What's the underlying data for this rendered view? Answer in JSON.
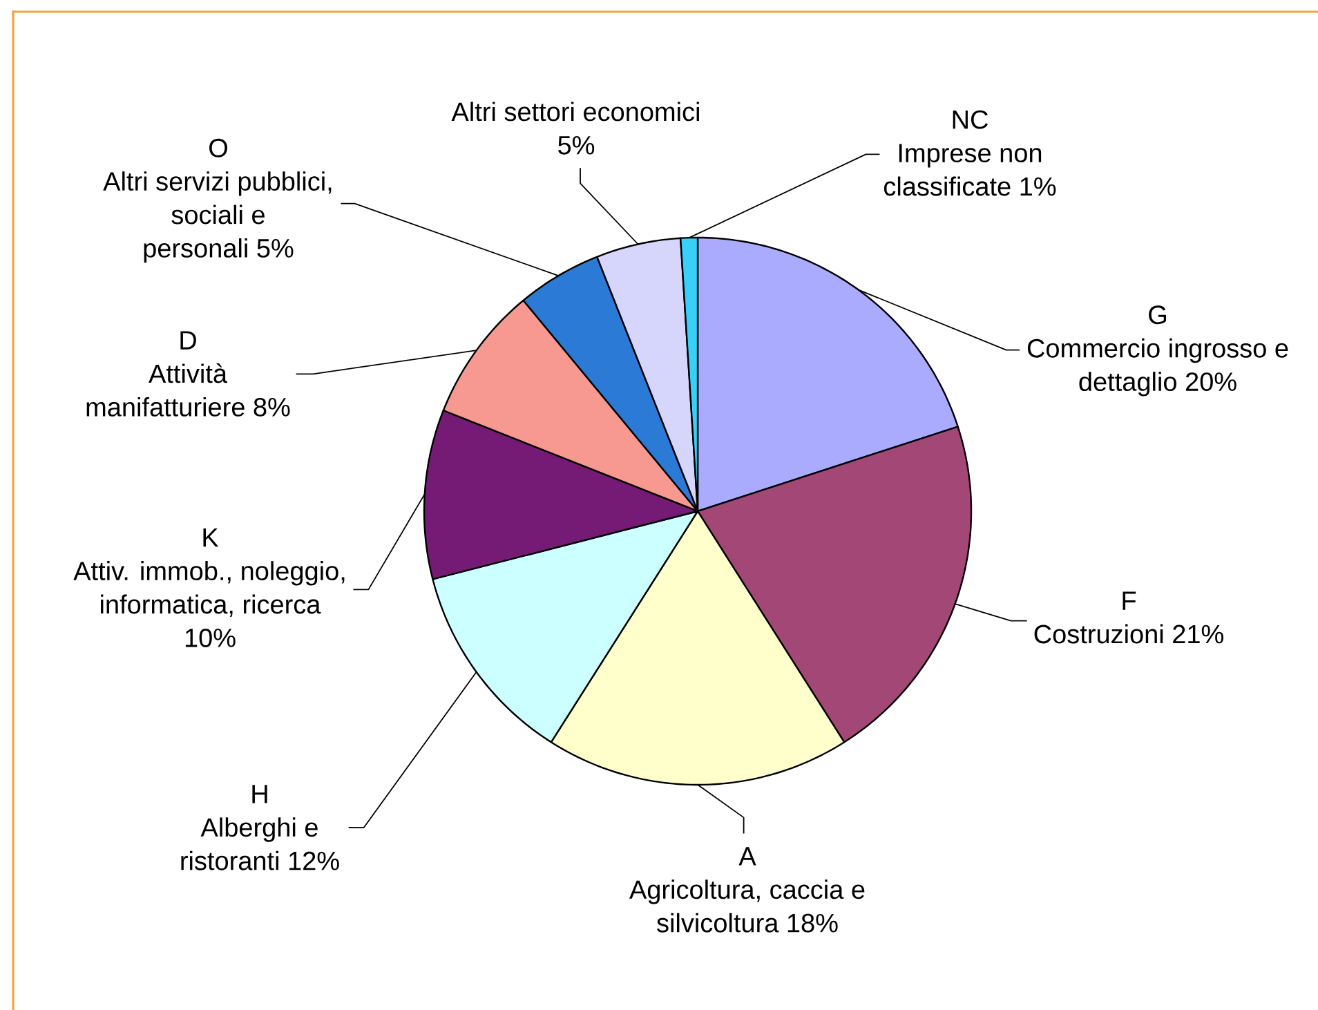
{
  "chart_data": {
    "type": "pie",
    "categories": [
      "G Commercio ingrosso e dettaglio 20%",
      "F Costruzioni 21%",
      "A Agricoltura, caccia e silvicoltura 18%",
      "H Alberghi e ristoranti 12%",
      "K Attiv. immob., noleggio, informatica, ricerca 10%",
      "D Attività manifatturiere 8%",
      "O Altri servizi pubblici, sociali e personali 5%",
      "Altri settori economici 5%",
      "NC Imprese non classificate 1%"
    ],
    "values": [
      20,
      21,
      18,
      12,
      10,
      8,
      5,
      5,
      1
    ],
    "colors": [
      "#aaaaff",
      "#a34876",
      "#ffffcc",
      "#ccffff",
      "#751a75",
      "#f79891",
      "#2b7bd6",
      "#d6d6fc",
      "#38d0f8"
    ]
  }
}
